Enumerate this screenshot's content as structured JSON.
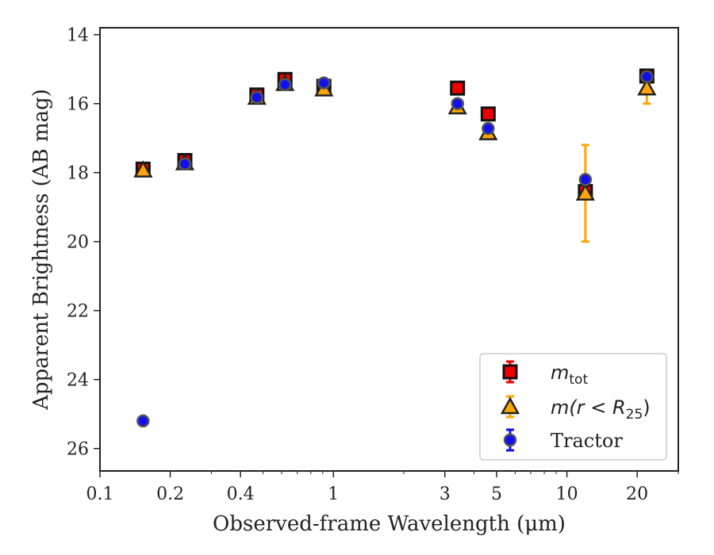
{
  "chart_data": {
    "type": "scatter",
    "xlabel": "Observed-frame Wavelength (μm)",
    "ylabel": "Apparent Brightness (AB mag)",
    "xscale": "log",
    "xlim": [
      0.1,
      30
    ],
    "ylim": [
      26.65,
      13.8
    ],
    "y_inverted": true,
    "x_ticks": [
      {
        "value": 0.1,
        "label": "0.1"
      },
      {
        "value": 0.2,
        "label": "0.2"
      },
      {
        "value": 0.4,
        "label": "0.4"
      },
      {
        "value": 1,
        "label": "1"
      },
      {
        "value": 3,
        "label": "3"
      },
      {
        "value": 5,
        "label": "5"
      },
      {
        "value": 10,
        "label": "10"
      },
      {
        "value": 20,
        "label": "20"
      }
    ],
    "y_ticks": [
      {
        "value": 14,
        "label": "14"
      },
      {
        "value": 16,
        "label": "16"
      },
      {
        "value": 18,
        "label": "18"
      },
      {
        "value": 20,
        "label": "20"
      },
      {
        "value": 22,
        "label": "22"
      },
      {
        "value": 24,
        "label": "24"
      },
      {
        "value": 26,
        "label": "26"
      }
    ],
    "grid": false,
    "legend_position": "lower-right",
    "series": [
      {
        "name": "m_tot",
        "legend_main": "m",
        "legend_sub": "tot",
        "marker": "square",
        "color": "#ee0000",
        "errcolor": "#ee0000",
        "points": [
          {
            "x": 0.153,
            "y": 17.9,
            "err": 0.08
          },
          {
            "x": 0.231,
            "y": 17.65,
            "err": 0.1
          },
          {
            "x": 0.47,
            "y": 15.75,
            "err": 0.1
          },
          {
            "x": 0.62,
            "y": 15.3,
            "err": 0.12
          },
          {
            "x": 0.91,
            "y": 15.5,
            "err": 0.1
          },
          {
            "x": 3.4,
            "y": 15.55,
            "err": 0.08
          },
          {
            "x": 4.6,
            "y": 16.3,
            "err": 0.08
          },
          {
            "x": 12.0,
            "y": 18.55,
            "err": 0.1
          },
          {
            "x": 22.0,
            "y": 15.2,
            "err": 0.1
          }
        ]
      },
      {
        "name": "m(r < R_25)",
        "legend_main": "m(r < R",
        "legend_sub": "25",
        "legend_tail": ")",
        "marker": "triangle",
        "color": "#ffa500",
        "errcolor": "#ffa500",
        "points": [
          {
            "x": 0.153,
            "y": 17.93,
            "err": 0.05
          },
          {
            "x": 0.231,
            "y": 17.72,
            "err": 0.05
          },
          {
            "x": 0.47,
            "y": 15.82,
            "err": 0.05
          },
          {
            "x": 0.62,
            "y": 15.42,
            "err": 0.05
          },
          {
            "x": 0.91,
            "y": 15.58,
            "err": 0.05
          },
          {
            "x": 3.4,
            "y": 16.1,
            "err": 0.05
          },
          {
            "x": 4.6,
            "y": 16.85,
            "err": 0.05
          },
          {
            "x": 12.0,
            "y": 18.6,
            "err": 1.4
          },
          {
            "x": 22.0,
            "y": 15.55,
            "err": 0.45
          }
        ]
      },
      {
        "name": "Tractor",
        "legend_main": "Tractor",
        "marker": "circle",
        "color": "#1010ee",
        "errcolor": "#1010ee",
        "points": [
          {
            "x": 0.153,
            "y": 25.2,
            "err": 0.05
          },
          {
            "x": 0.231,
            "y": 17.75,
            "err": 0.05
          },
          {
            "x": 0.47,
            "y": 15.82,
            "err": 0.05
          },
          {
            "x": 0.62,
            "y": 15.45,
            "err": 0.05
          },
          {
            "x": 0.91,
            "y": 15.4,
            "err": 0.05
          },
          {
            "x": 3.4,
            "y": 16.0,
            "err": 0.05
          },
          {
            "x": 4.6,
            "y": 16.72,
            "err": 0.05
          },
          {
            "x": 12.0,
            "y": 18.2,
            "err": 0.08
          },
          {
            "x": 22.0,
            "y": 15.22,
            "err": 0.05
          }
        ]
      }
    ]
  }
}
